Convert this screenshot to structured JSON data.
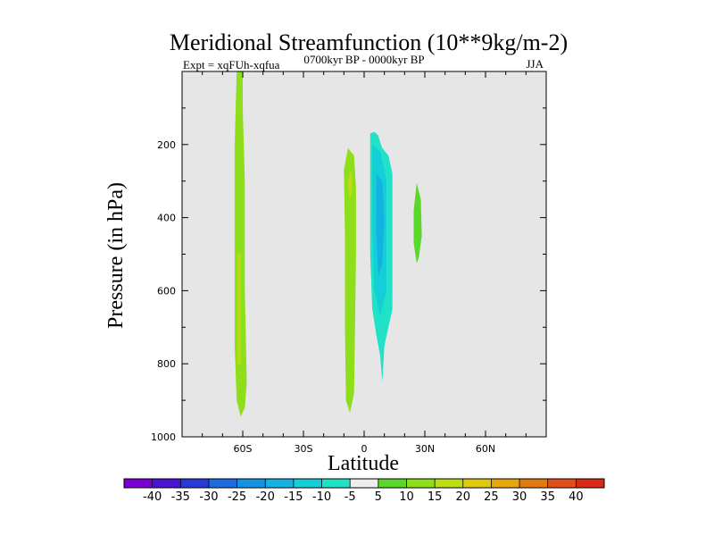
{
  "chart_data": {
    "type": "contour",
    "title": "Meridional Streamfunction (10**9kg/m-2)",
    "experiment": "Expt = xqFUh-xqfua",
    "period": "0700kyr BP - 0000kyr BP",
    "season": "JJA",
    "xlabel": "Latitude",
    "ylabel": "Pressure (in hPa)",
    "xlim": [
      -90,
      90
    ],
    "ylim": [
      1000,
      0
    ],
    "x_ticks": [
      {
        "value": -60,
        "label": "60S"
      },
      {
        "value": -30,
        "label": "30S"
      },
      {
        "value": 0,
        "label": "0"
      },
      {
        "value": 30,
        "label": "30N"
      },
      {
        "value": 60,
        "label": "60N"
      }
    ],
    "y_ticks": [
      200,
      400,
      600,
      800,
      1000
    ],
    "background_color": "#e6e6e6",
    "colorbar": {
      "levels": [
        -40,
        -35,
        -30,
        -25,
        -20,
        -15,
        -10,
        -5,
        5,
        10,
        15,
        20,
        25,
        30,
        35,
        40
      ],
      "colors": [
        "#7a00d6",
        "#4a14d2",
        "#2a3ad8",
        "#1d6ce0",
        "#1492e2",
        "#14b2e2",
        "#14cfd8",
        "#1fe2c6",
        "#eeeeee",
        "#5ad82a",
        "#8ede1c",
        "#bddc12",
        "#e0c80e",
        "#e6a60c",
        "#e27a12",
        "#e0501a",
        "#d82a14"
      ]
    },
    "features": [
      {
        "name": "positive cell near 60S",
        "sign": "positive",
        "color": "#8ede1c",
        "outline": [
          [
            -63,
            0
          ],
          [
            -60,
            0
          ],
          [
            -60,
            100
          ],
          [
            -59,
            300
          ],
          [
            -59,
            600
          ],
          [
            -58,
            850
          ],
          [
            -59,
            920
          ],
          [
            -61,
            945
          ],
          [
            -63,
            900
          ],
          [
            -64,
            750
          ],
          [
            -64,
            500
          ],
          [
            -64,
            200
          ]
        ],
        "cores": [
          {
            "color": "#bddc12",
            "outline": [
              [
                -62.5,
                500
              ],
              [
                -61,
                500
              ],
              [
                -61,
                800
              ],
              [
                -62.5,
                800
              ]
            ]
          }
        ]
      },
      {
        "name": "positive cell near 10S",
        "sign": "positive",
        "color": "#8ede1c",
        "outline": [
          [
            -8,
            210
          ],
          [
            -5,
            230
          ],
          [
            -4,
            320
          ],
          [
            -4,
            500
          ],
          [
            -4.5,
            700
          ],
          [
            -5,
            880
          ],
          [
            -7,
            935
          ],
          [
            -9,
            900
          ],
          [
            -9.5,
            700
          ],
          [
            -9.5,
            450
          ],
          [
            -10,
            270
          ]
        ],
        "cores": [
          {
            "color": "#bddc12",
            "outline": [
              [
                -7,
                270
              ],
              [
                -6,
                290
              ],
              [
                -6,
                330
              ],
              [
                -7,
                350
              ],
              [
                -8,
                310
              ]
            ]
          }
        ]
      },
      {
        "name": "negative cell near 8N",
        "sign": "negative",
        "color": "#1fe2c6",
        "outline": [
          [
            3,
            170
          ],
          [
            5,
            165
          ],
          [
            7,
            175
          ],
          [
            8,
            195
          ],
          [
            9,
            210
          ],
          [
            12,
            230
          ],
          [
            14,
            280
          ],
          [
            14,
            650
          ],
          [
            12,
            700
          ],
          [
            10,
            750
          ],
          [
            9,
            850
          ],
          [
            8,
            780
          ],
          [
            6,
            720
          ],
          [
            4,
            650
          ],
          [
            3,
            500
          ],
          [
            3,
            300
          ]
        ],
        "cores": [
          {
            "color": "#14cfd8",
            "outline": [
              [
                4,
                200
              ],
              [
                8,
                220
              ],
              [
                11,
                300
              ],
              [
                11,
                600
              ],
              [
                8,
                670
              ],
              [
                5,
                600
              ],
              [
                4,
                400
              ]
            ]
          },
          {
            "color": "#14b2e2",
            "outline": [
              [
                6,
                280
              ],
              [
                9,
                300
              ],
              [
                10,
                400
              ],
              [
                9,
                530
              ],
              [
                7,
                560
              ],
              [
                6,
                450
              ]
            ]
          }
        ]
      },
      {
        "name": "positive cell near 26N",
        "sign": "positive",
        "color": "#5ad82a",
        "outline": [
          [
            26,
            305
          ],
          [
            28,
            350
          ],
          [
            28.5,
            450
          ],
          [
            27,
            510
          ],
          [
            26,
            525
          ],
          [
            24.5,
            470
          ],
          [
            24.5,
            380
          ]
        ],
        "cores": []
      }
    ]
  }
}
